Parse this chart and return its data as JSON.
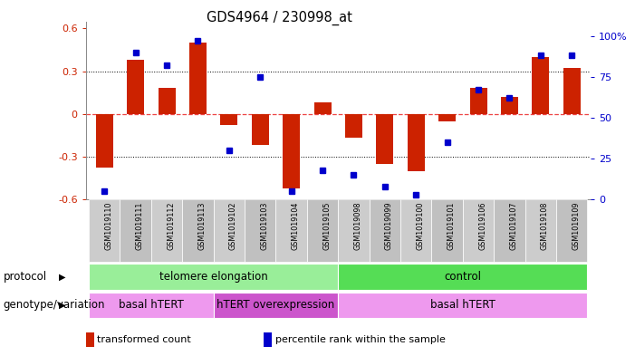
{
  "title": "GDS4964 / 230998_at",
  "samples": [
    "GSM1019110",
    "GSM1019111",
    "GSM1019112",
    "GSM1019113",
    "GSM1019102",
    "GSM1019103",
    "GSM1019104",
    "GSM1019105",
    "GSM1019098",
    "GSM1019099",
    "GSM1019100",
    "GSM1019101",
    "GSM1019106",
    "GSM1019107",
    "GSM1019108",
    "GSM1019109"
  ],
  "transformed_count": [
    -0.38,
    0.38,
    0.18,
    0.5,
    -0.08,
    -0.22,
    -0.52,
    0.08,
    -0.17,
    -0.35,
    -0.4,
    -0.05,
    0.18,
    0.12,
    0.4,
    0.32
  ],
  "percentile_rank": [
    5,
    90,
    82,
    97,
    30,
    75,
    5,
    18,
    15,
    8,
    3,
    35,
    67,
    62,
    88,
    88
  ],
  "ylim_left": [
    -0.6,
    0.65
  ],
  "ylim_right": [
    0,
    109
  ],
  "yticks_left": [
    -0.6,
    -0.3,
    0.0,
    0.3,
    0.6
  ],
  "yticks_right": [
    0,
    25,
    50,
    75,
    100
  ],
  "ytick_labels_right": [
    "0",
    "25",
    "50",
    "75",
    "100%"
  ],
  "bar_color": "#cc2200",
  "dot_color": "#0000cc",
  "protocol_groups": [
    {
      "label": "telomere elongation",
      "start": 0,
      "end": 8,
      "color": "#99ee99"
    },
    {
      "label": "control",
      "start": 8,
      "end": 16,
      "color": "#55dd55"
    }
  ],
  "genotype_groups": [
    {
      "label": "basal hTERT",
      "start": 0,
      "end": 4,
      "color": "#ee99ee"
    },
    {
      "label": "hTERT overexpression",
      "start": 4,
      "end": 8,
      "color": "#cc55cc"
    },
    {
      "label": "basal hTERT",
      "start": 8,
      "end": 16,
      "color": "#ee99ee"
    }
  ],
  "legend_items": [
    {
      "color": "#cc2200",
      "label": "transformed count"
    },
    {
      "color": "#0000cc",
      "label": "percentile rank within the sample"
    }
  ],
  "protocol_label": "protocol",
  "genotype_label": "genotype/variation",
  "bg_color": "#ffffff",
  "tick_color_left": "#cc2200",
  "tick_color_right": "#0000cc"
}
